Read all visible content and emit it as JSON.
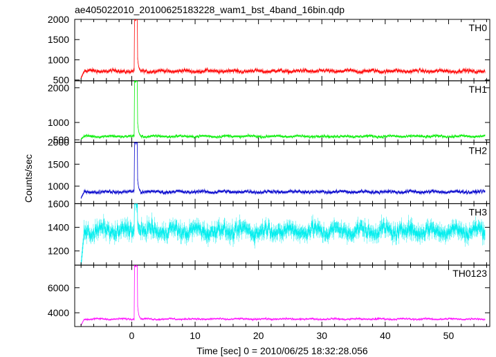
{
  "title": "ae405022010_20100625183228_wam1_bst_4band_16bin.qdp",
  "xlabel": "Time [sec] 0 = 2010/06/25 18:32:28.056",
  "ylabel": "Counts/sec",
  "chart_data": {
    "type": "line",
    "title": "ae405022010_20100625183228_wam1_bst_4band_16bin.qdp",
    "xlabel": "Time [sec] 0 = 2010/06/25 18:32:28.056",
    "ylabel": "Counts/sec",
    "xlim": [
      -9,
      56.5
    ],
    "xticks": [
      0,
      10,
      20,
      30,
      40,
      50
    ],
    "grid": false,
    "panels": [
      {
        "name": "TH0",
        "color": "#ff0000",
        "ylim": [
          480,
          2000
        ],
        "yticks": [
          500,
          1000,
          1500,
          2000
        ],
        "baseline": 720,
        "noise": 55,
        "peak": 2000,
        "peak_x": 0.5,
        "start": 550
      },
      {
        "name": "TH1",
        "color": "#00ee00",
        "ylim": [
          430,
          2200
        ],
        "yticks": [
          500,
          1000,
          2000
        ],
        "baseline": 600,
        "noise": 45,
        "peak": 2200,
        "peak_x": 0.5,
        "start": 520
      },
      {
        "name": "TH2",
        "color": "#0000cc",
        "ylim": [
          600,
          2000
        ],
        "yticks": [
          1000,
          1500,
          2000
        ],
        "baseline": 870,
        "noise": 45,
        "peak": 2000,
        "peak_x": 0.5,
        "start": 730
      },
      {
        "name": "TH3",
        "color": "#00eeee",
        "ylim": [
          1080,
          1600
        ],
        "yticks": [
          1200,
          1400,
          1600
        ],
        "baseline": 1370,
        "noise": 80,
        "peak": 1600,
        "peak_x": 0.5,
        "start": 1080
      },
      {
        "name": "TH0123",
        "color": "#ff00ff",
        "ylim": [
          2900,
          7800
        ],
        "yticks": [
          4000,
          6000
        ],
        "baseline": 3500,
        "noise": 90,
        "peak": 7800,
        "peak_x": 0.5,
        "start": 3000
      }
    ]
  }
}
